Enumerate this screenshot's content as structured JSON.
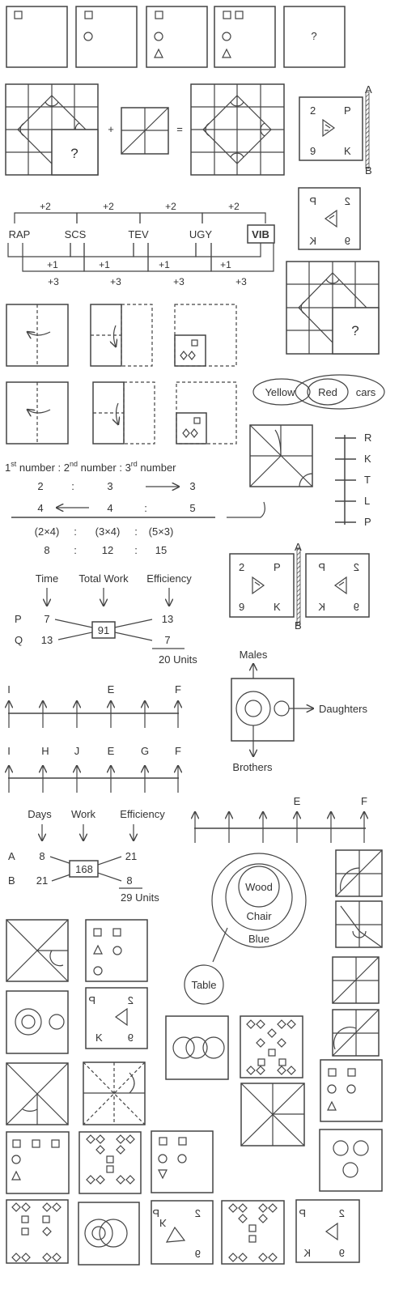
{
  "q_mark": "?",
  "plus": "+",
  "equals": "=",
  "mirror_a": "A",
  "mirror_b": "B",
  "card": {
    "tl": "2",
    "tr": "P",
    "bl": "9",
    "br": "K"
  },
  "series": {
    "top": [
      "+2",
      "+2",
      "+2",
      "+2"
    ],
    "words": [
      "RAP",
      "SCS",
      "TEV",
      "UGY",
      "VIB"
    ],
    "plus1": [
      "+1",
      "+1",
      "+1",
      "+1"
    ],
    "plus3": [
      "+3",
      "+3",
      "+3",
      "+3"
    ]
  },
  "venn": {
    "yellow": "Yellow",
    "red": "Red",
    "cars": "cars"
  },
  "vertical_line": [
    "R",
    "K",
    "T",
    "L",
    "P"
  ],
  "ratio": {
    "n1": "1",
    "s1": "st",
    "n2": "2",
    "s2": "nd",
    "n3": "3",
    "s3": "rd",
    "w1": " number : ",
    "w2": " number : ",
    "w3": " number",
    "row1": [
      "2",
      ":",
      "3",
      "3"
    ],
    "row2": [
      "4",
      "4",
      ":",
      "5"
    ],
    "row3": [
      "(2×4)",
      ":",
      "(3×4)",
      ":",
      "(5×3)"
    ],
    "row4": [
      "8",
      ":",
      "12",
      ":",
      "15"
    ]
  },
  "work1": {
    "h1": "Time",
    "h2": "Total Work",
    "h3": "Efficiency",
    "r1": "P",
    "r2": "Q",
    "a": "7",
    "b": "13",
    "total": "91",
    "c": "13",
    "d": "7",
    "units": "20 Units"
  },
  "family": {
    "males": "Males",
    "daughters": "Daughters",
    "brothers": "Brothers"
  },
  "line1": [
    "I",
    "E",
    "F"
  ],
  "line2": [
    "I",
    "H",
    "J",
    "E",
    "G",
    "F"
  ],
  "line3": [
    "E",
    "F"
  ],
  "work2": {
    "h1": "Days",
    "h2": "Work",
    "h3": "Efficiency",
    "r1": "A",
    "r2": "B",
    "a": "8",
    "b": "21",
    "total": "168",
    "c": "21",
    "d": "8",
    "units": "29 Units"
  },
  "nested": {
    "wood": "Wood",
    "chair": "Chair",
    "blue": "Blue",
    "table": "Table"
  }
}
